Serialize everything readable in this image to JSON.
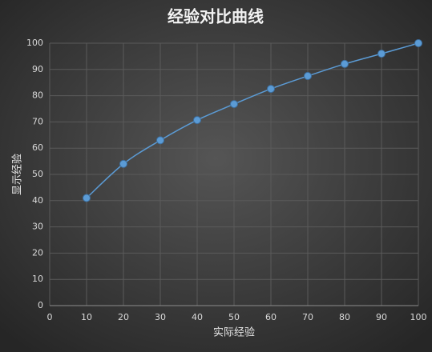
{
  "chart_data": {
    "type": "line",
    "title": "经验对比曲线",
    "x_label": "实际经验",
    "y_label": "显示经验",
    "x": [
      10,
      20,
      30,
      40,
      50,
      60,
      70,
      80,
      90,
      100
    ],
    "series": [
      {
        "color": "#5b9bd5",
        "values": [
          41,
          54,
          63,
          70.7,
          76.8,
          82.6,
          87.5,
          92.1,
          96,
          100
        ]
      }
    ],
    "xlim": [
      0,
      100
    ],
    "xticks": [
      0,
      10,
      20,
      30,
      40,
      50,
      60,
      70,
      80,
      90,
      100
    ],
    "ylim": [
      0,
      100
    ],
    "yticks": [
      0,
      10,
      20,
      30,
      40,
      50,
      60,
      70,
      80,
      90,
      100
    ],
    "grid": true
  }
}
